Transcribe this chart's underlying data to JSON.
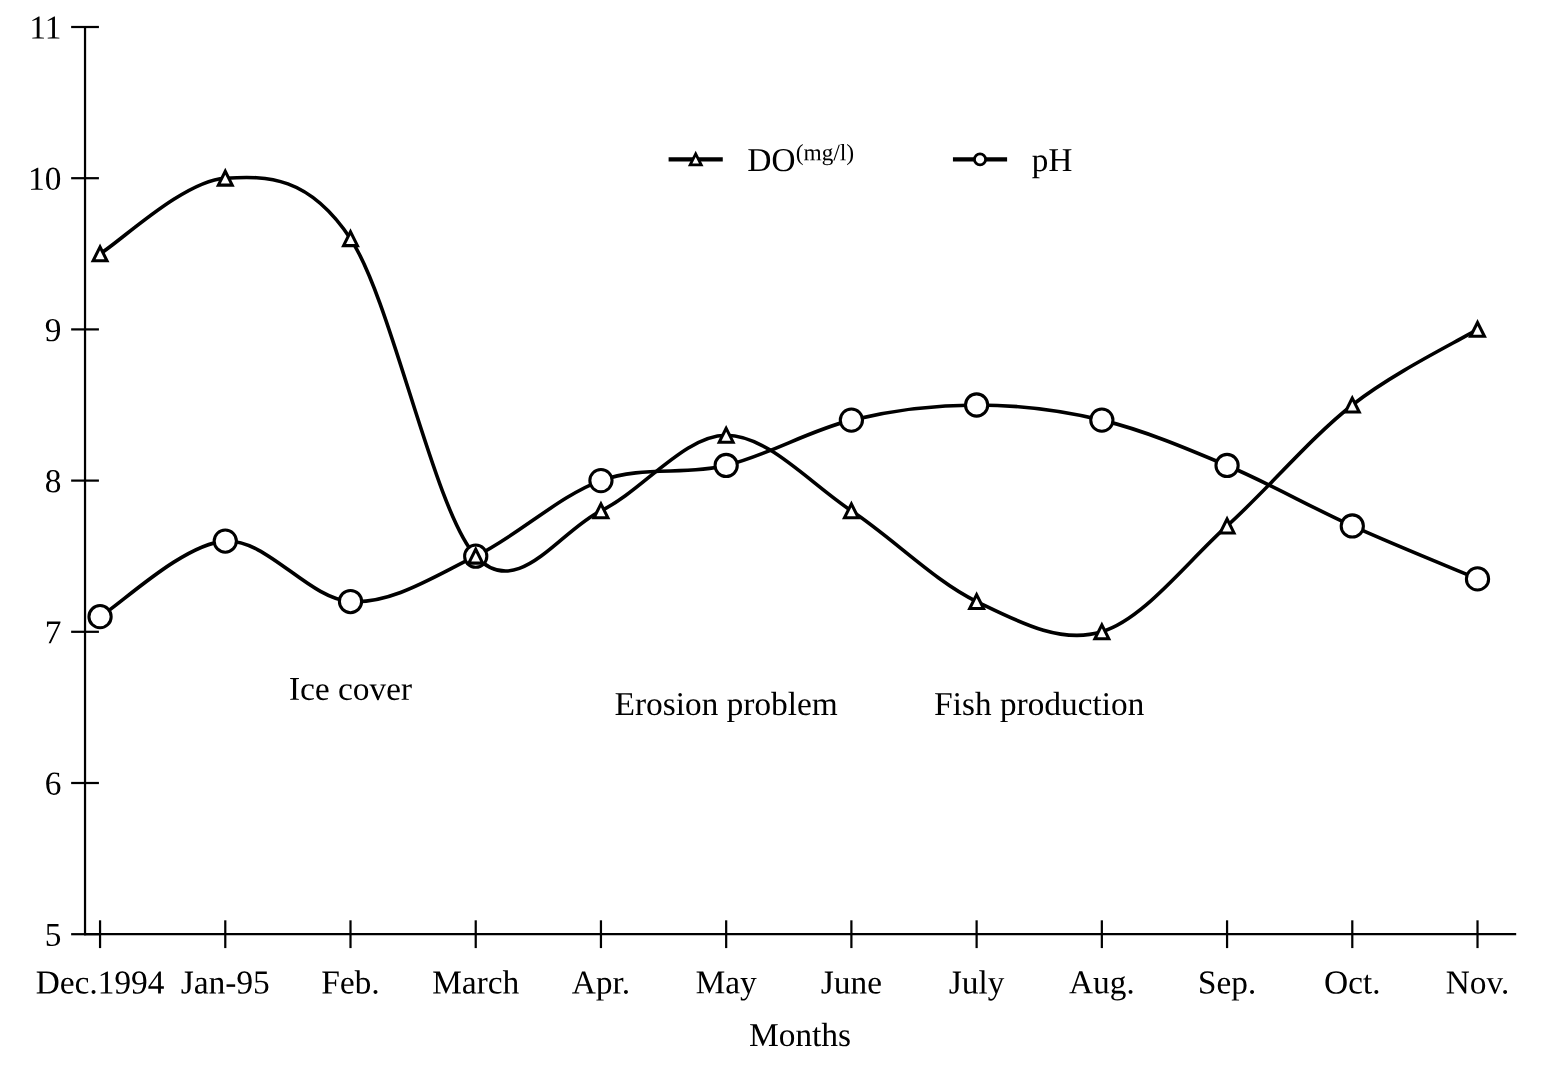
{
  "chart_data": {
    "type": "line",
    "xlabel": "Months",
    "categories": [
      "Dec.1994",
      "Jan-95",
      "Feb.",
      "March",
      "Apr.",
      "May",
      "June",
      "July",
      "Aug.",
      "Sep.",
      "Oct.",
      "Nov."
    ],
    "series": [
      {
        "name": "DO$^{(mg/l)}$",
        "color": "#000000",
        "marker": "triangle",
        "values": [
          9.5,
          10.0,
          9.6,
          7.5,
          7.8,
          8.3,
          7.8,
          7.2,
          7.0,
          7.7,
          8.5,
          9.0
        ]
      },
      {
        "name": "pH",
        "color": "#000000",
        "marker": "circle",
        "values": [
          7.1,
          7.6,
          7.2,
          7.5,
          8.0,
          8.1,
          8.4,
          8.5,
          8.4,
          8.1,
          7.7,
          7.35
        ]
      }
    ],
    "ylim": [
      5,
      11
    ],
    "yticks": [
      5,
      6,
      7,
      8,
      9,
      10,
      11
    ],
    "annotations": [
      "Ice cover",
      "Erosion problem",
      "Fish production"
    ],
    "legend": "top",
    "grid": false,
    "line_style": "solid"
  }
}
